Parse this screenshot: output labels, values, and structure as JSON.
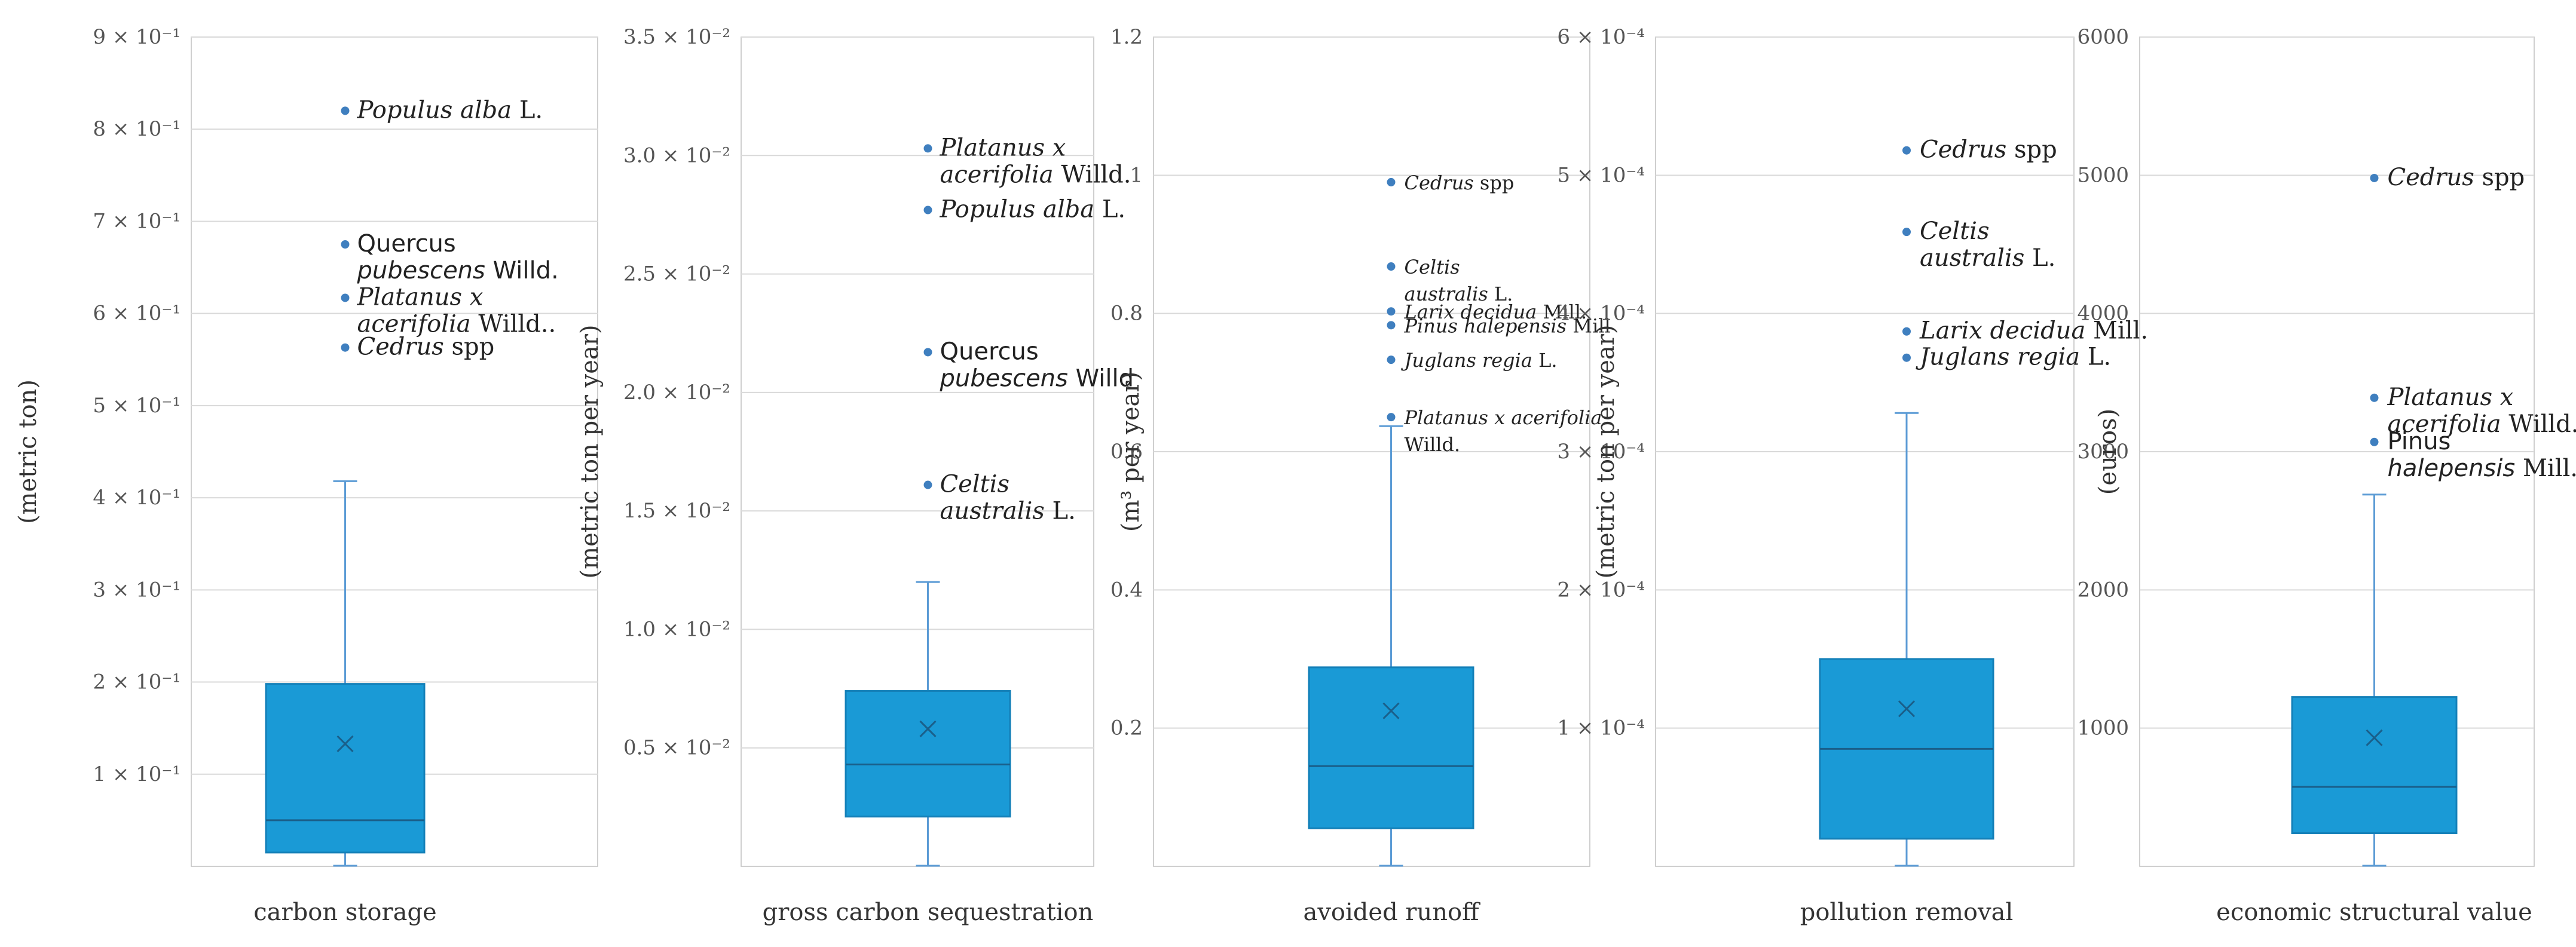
{
  "chart_data": [
    {
      "type": "box",
      "xlabel": "carbon storage",
      "ylabel": "(metric ton)",
      "ylim": [
        0,
        0.9
      ],
      "ticks": [
        {
          "value": 0.1,
          "label": "1 × 10⁻¹"
        },
        {
          "value": 0.2,
          "label": "2 × 10⁻¹"
        },
        {
          "value": 0.3,
          "label": "3 × 10⁻¹"
        },
        {
          "value": 0.4,
          "label": "4 × 10⁻¹"
        },
        {
          "value": 0.5,
          "label": "5 × 10⁻¹"
        },
        {
          "value": 0.6,
          "label": "6 × 10⁻¹"
        },
        {
          "value": 0.7,
          "label": "7 × 10⁻¹"
        },
        {
          "value": 0.8,
          "label": "8 × 10⁻¹"
        },
        {
          "value": 0.9,
          "label": "9 × 10⁻¹"
        }
      ],
      "box": {
        "min": 0.0,
        "q1": 0.015,
        "median": 0.05,
        "q3": 0.198,
        "max": 0.418,
        "mean": 0.133
      },
      "outliers": [
        {
          "value": 0.82,
          "lines": [
            [
              [
                "Populus alba",
                "it"
              ],
              [
                " L.",
                ""
              ]
            ]
          ]
        },
        {
          "value": 0.675,
          "lines": [
            [
              [
                "Quercus",
                "sn"
              ]
            ],
            [
              [
                "pubescens",
                "sn-it"
              ],
              [
                " Willd.",
                "sn"
              ]
            ]
          ]
        },
        {
          "value": 0.617,
          "lines": [
            [
              [
                "Platanus x",
                "it"
              ]
            ],
            [
              [
                "acerifolia",
                "it"
              ],
              [
                " Willd..",
                ""
              ]
            ]
          ]
        },
        {
          "value": 0.563,
          "lines": [
            [
              [
                "Cedrus",
                "it"
              ],
              [
                " spp",
                ""
              ]
            ]
          ]
        }
      ]
    },
    {
      "type": "box",
      "xlabel": "gross carbon sequestration",
      "ylabel": "(metric ton per year)",
      "ylim": [
        0,
        0.035
      ],
      "ticks": [
        {
          "value": 0.005,
          "label": "0.5 × 10⁻²"
        },
        {
          "value": 0.01,
          "label": "1.0 × 10⁻²"
        },
        {
          "value": 0.015,
          "label": "1.5 × 10⁻²"
        },
        {
          "value": 0.02,
          "label": "2.0 × 10⁻²"
        },
        {
          "value": 0.025,
          "label": "2.5 × 10⁻²"
        },
        {
          "value": 0.03,
          "label": "3.0 × 10⁻²"
        },
        {
          "value": 0.035,
          "label": "3.5 × 10⁻²"
        }
      ],
      "box": {
        "min": 0.0,
        "q1": 0.0021,
        "median": 0.0043,
        "q3": 0.0074,
        "max": 0.012,
        "mean": 0.0058
      },
      "outliers": [
        {
          "value": 0.0303,
          "lines": [
            [
              [
                "Platanus x",
                "it"
              ]
            ],
            [
              [
                "acerifolia",
                "it"
              ],
              [
                " Willd.",
                ""
              ]
            ]
          ]
        },
        {
          "value": 0.0277,
          "lines": [
            [
              [
                "Populus alba",
                "it"
              ],
              [
                " L.",
                ""
              ]
            ]
          ]
        },
        {
          "value": 0.0217,
          "lines": [
            [
              [
                "Quercus",
                "sn"
              ]
            ],
            [
              [
                "pubescens",
                "sn-it"
              ],
              [
                " Willd",
                "sn"
              ]
            ]
          ]
        },
        {
          "value": 0.0161,
          "lines": [
            [
              [
                "Celtis",
                "it"
              ]
            ],
            [
              [
                "australis",
                "it"
              ],
              [
                " L.",
                ""
              ]
            ]
          ]
        }
      ]
    },
    {
      "type": "box",
      "xlabel": "avoided runoff",
      "ylabel": "(m³ per year)",
      "ylim": [
        0,
        1.2
      ],
      "ticks": [
        {
          "value": 0.2,
          "label": "0.2"
        },
        {
          "value": 0.4,
          "label": "0.4"
        },
        {
          "value": 0.6,
          "label": "0.6"
        },
        {
          "value": 0.8,
          "label": "0.8"
        },
        {
          "value": 1.0,
          "label": "1"
        },
        {
          "value": 1.2,
          "label": "1.2"
        }
      ],
      "box": {
        "min": 0.0,
        "q1": 0.055,
        "median": 0.145,
        "q3": 0.288,
        "max": 0.637,
        "mean": 0.225
      },
      "outliers": [
        {
          "value": 0.99,
          "lines": [
            [
              [
                "Cedrus",
                "it"
              ],
              [
                " spp",
                ""
              ]
            ]
          ]
        },
        {
          "value": 0.868,
          "lines": [
            [
              [
                "Celtis",
                "it"
              ]
            ],
            [
              [
                "australis",
                "it"
              ],
              [
                " L.",
                ""
              ]
            ]
          ]
        },
        {
          "value": 0.803,
          "lines": [
            [
              [
                "Larix decidua",
                "it"
              ],
              [
                " Mill.",
                ""
              ]
            ]
          ]
        },
        {
          "value": 0.783,
          "lines": [
            [
              [
                "Pinus halepensis",
                "it"
              ],
              [
                " Mill",
                ""
              ]
            ]
          ]
        },
        {
          "value": 0.733,
          "lines": [
            [
              [
                "Juglans regia",
                "it"
              ],
              [
                " L.",
                ""
              ]
            ]
          ]
        },
        {
          "value": 0.65,
          "lines": [
            [
              [
                "Platanus x acerifolia",
                "it"
              ]
            ],
            [
              [
                "Willd.",
                ""
              ]
            ]
          ]
        }
      ]
    },
    {
      "type": "box",
      "xlabel": "pollution removal",
      "ylabel": "(metric ton per year)",
      "ylim": [
        0,
        0.0006
      ],
      "ticks": [
        {
          "value": 0.0001,
          "label": "1 × 10⁻⁴"
        },
        {
          "value": 0.0002,
          "label": "2 × 10⁻⁴"
        },
        {
          "value": 0.0003,
          "label": "3 × 10⁻⁴"
        },
        {
          "value": 0.0004,
          "label": "4 × 10⁻⁴"
        },
        {
          "value": 0.0005,
          "label": "5 × 10⁻⁴"
        },
        {
          "value": 0.0006,
          "label": "6 × 10⁻⁴"
        }
      ],
      "box": {
        "min": 0.0,
        "q1": 2e-05,
        "median": 8.5e-05,
        "q3": 0.00015,
        "max": 0.000328,
        "mean": 0.000114
      },
      "outliers": [
        {
          "value": 0.000518,
          "lines": [
            [
              [
                "Cedrus",
                "it"
              ],
              [
                " spp",
                ""
              ]
            ]
          ]
        },
        {
          "value": 0.000459,
          "lines": [
            [
              [
                "Celtis",
                "it"
              ]
            ],
            [
              [
                "australis",
                "it"
              ],
              [
                " L.",
                ""
              ]
            ]
          ]
        },
        {
          "value": 0.000387,
          "lines": [
            [
              [
                "Larix decidua",
                "it"
              ],
              [
                " Mill.",
                ""
              ]
            ]
          ]
        },
        {
          "value": 0.000368,
          "lines": [
            [
              [
                "Juglans regia",
                "it"
              ],
              [
                " L.",
                ""
              ]
            ]
          ]
        }
      ]
    },
    {
      "type": "box",
      "xlabel": "economic structural value",
      "ylabel": "(euros)",
      "ylim": [
        0,
        6000
      ],
      "ticks": [
        {
          "value": 1000,
          "label": "1000"
        },
        {
          "value": 2000,
          "label": "2000"
        },
        {
          "value": 3000,
          "label": "3000"
        },
        {
          "value": 4000,
          "label": "4000"
        },
        {
          "value": 5000,
          "label": "5000"
        },
        {
          "value": 6000,
          "label": "6000"
        }
      ],
      "box": {
        "min": 0,
        "q1": 240,
        "median": 575,
        "q3": 1225,
        "max": 2690,
        "mean": 930
      },
      "outliers": [
        {
          "value": 4980,
          "lines": [
            [
              [
                "Cedrus",
                "it"
              ],
              [
                " spp",
                ""
              ]
            ]
          ]
        },
        {
          "value": 3390,
          "lines": [
            [
              [
                "Platanus x",
                "it"
              ]
            ],
            [
              [
                "acerifolia",
                "it"
              ],
              [
                " Willd.",
                ""
              ]
            ]
          ]
        },
        {
          "value": 3070,
          "lines": [
            [
              [
                "Pinus",
                "sn"
              ]
            ],
            [
              [
                "halepensis",
                "sn-it"
              ],
              [
                " Mill.",
                ""
              ]
            ]
          ]
        }
      ]
    }
  ],
  "colors": {
    "box_fill": "#1a9ad6",
    "box_stroke": "#1480b8",
    "whisker": "#5b9bd5",
    "outlier": "#3f7fbf",
    "gridline": "#d9d9d9",
    "frame": "#bfbfbf",
    "median": "#1a5f8a"
  }
}
